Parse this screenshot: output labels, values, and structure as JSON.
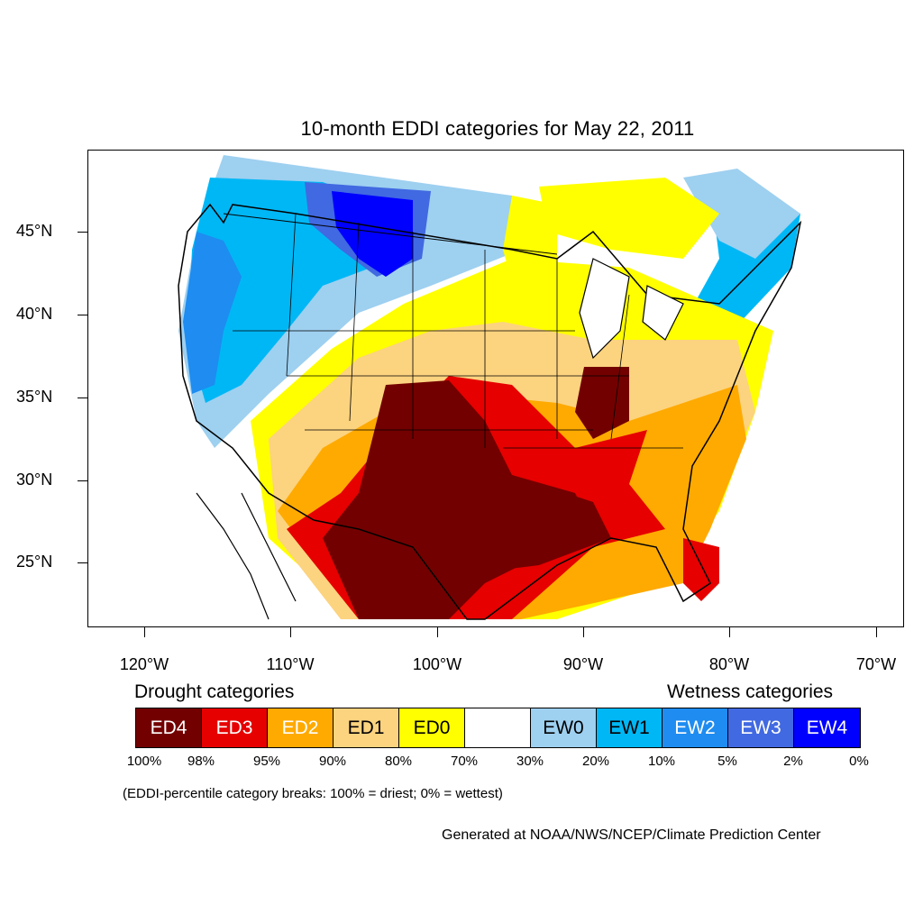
{
  "title": "10-month EDDI categories for May 22, 2011",
  "axes": {
    "latitude_labels": [
      "45°N",
      "40°N",
      "35°N",
      "30°N",
      "25°N"
    ],
    "longitude_labels": [
      "120°W",
      "110°W",
      "100°W",
      "90°W",
      "80°W",
      "70°W"
    ]
  },
  "legend": {
    "drought_heading": "Drought categories",
    "wetness_heading": "Wetness categories",
    "categories": [
      {
        "label": "ED4",
        "color": "#730000",
        "text_color": "#ffffff"
      },
      {
        "label": "ED3",
        "color": "#e60000",
        "text_color": "#ffffff"
      },
      {
        "label": "ED2",
        "color": "#ffaa00",
        "text_color": "#ffffff"
      },
      {
        "label": "ED1",
        "color": "#fcd37f",
        "text_color": "#000000"
      },
      {
        "label": "ED0",
        "color": "#ffff00",
        "text_color": "#000000"
      },
      {
        "label": "",
        "color": "#ffffff",
        "text_color": "#000000"
      },
      {
        "label": "EW0",
        "color": "#9ed0f0",
        "text_color": "#000000"
      },
      {
        "label": "EW1",
        "color": "#00b7f5",
        "text_color": "#000000"
      },
      {
        "label": "EW2",
        "color": "#1e8cf0",
        "text_color": "#ffffff"
      },
      {
        "label": "EW3",
        "color": "#4169e1",
        "text_color": "#ffffff"
      },
      {
        "label": "EW4",
        "color": "#0000ff",
        "text_color": "#ffffff"
      }
    ],
    "breaks": [
      "100%",
      "98%",
      "95%",
      "90%",
      "80%",
      "70%",
      "30%",
      "20%",
      "10%",
      "5%",
      "2%",
      "0%"
    ],
    "note": "(EDDI-percentile category breaks: 100% = driest; 0% = wettest)"
  },
  "credit": "Generated at NOAA/NWS/NCEP/Climate Prediction Center"
}
